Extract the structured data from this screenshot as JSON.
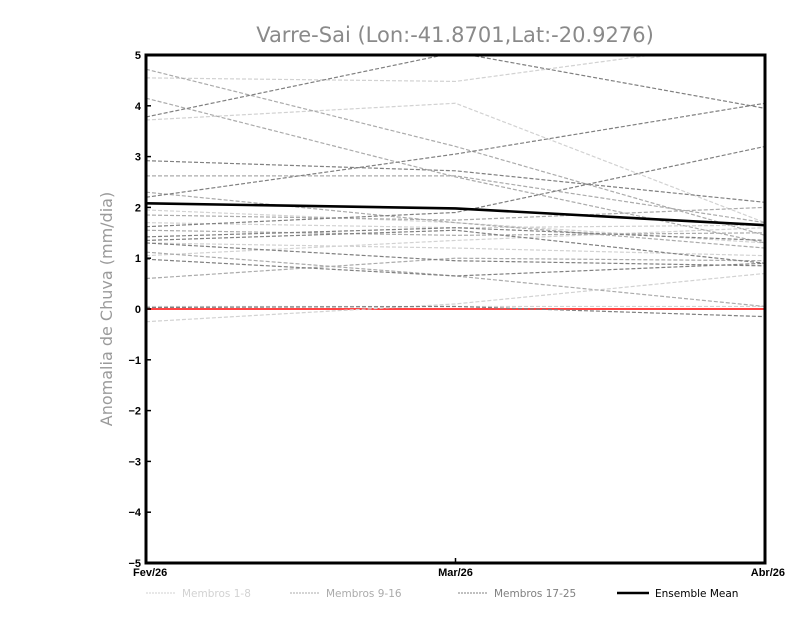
{
  "chart_data": {
    "type": "line",
    "title": "Varre-Sai (Lon:-41.8701,Lat:-20.9276)",
    "xlabel": "",
    "ylabel": "Anomalia de Chuva (mm/dia)",
    "categories": [
      "Fev/26",
      "Mar/26",
      "Abr/26"
    ],
    "ylim": [
      -5,
      5
    ],
    "yticks": [
      "5",
      "4",
      "3",
      "2",
      "1",
      "0",
      "-1",
      "-2",
      "-3",
      "-4",
      "-5"
    ],
    "zero_line_color": "#ff4444",
    "legend": {
      "placement": "bottom",
      "entries": [
        {
          "label": "Membros 1-8",
          "color": "#d2d2d2"
        },
        {
          "label": "Membros 9-16",
          "color": "#ababab"
        },
        {
          "label": "Membros 17-25",
          "color": "#808080"
        },
        {
          "label": "Ensemble Mean",
          "color": "#000000"
        }
      ]
    },
    "series": [
      {
        "name": "Membro 1",
        "group": 0,
        "values": [
          4.55,
          4.48,
          5.3
        ]
      },
      {
        "name": "Membro 2",
        "group": 0,
        "values": [
          3.72,
          4.05,
          1.7
        ]
      },
      {
        "name": "Membro 3",
        "group": 0,
        "values": [
          1.95,
          1.7,
          1.3
        ]
      },
      {
        "name": "Membro 4",
        "group": 0,
        "values": [
          1.7,
          1.6,
          1.65
        ]
      },
      {
        "name": "Membro 5",
        "group": 0,
        "values": [
          1.3,
          1.2,
          1.05
        ]
      },
      {
        "name": "Membro 6",
        "group": 0,
        "values": [
          1.05,
          1.35,
          1.6
        ]
      },
      {
        "name": "Membro 7",
        "group": 0,
        "values": [
          -0.25,
          0.1,
          0.7
        ]
      },
      {
        "name": "Membro 8",
        "group": 0,
        "values": [
          0.05,
          0.05,
          0.05
        ]
      },
      {
        "name": "Membro 9",
        "group": 1,
        "values": [
          4.72,
          3.2,
          1.45
        ]
      },
      {
        "name": "Membro 10",
        "group": 1,
        "values": [
          4.15,
          2.6,
          1.3
        ]
      },
      {
        "name": "Membro 11",
        "group": 1,
        "values": [
          2.62,
          2.62,
          1.7
        ]
      },
      {
        "name": "Membro 12",
        "group": 1,
        "values": [
          2.3,
          1.7,
          1.2
        ]
      },
      {
        "name": "Membro 13",
        "group": 1,
        "values": [
          1.85,
          1.75,
          2.0
        ]
      },
      {
        "name": "Membro 14",
        "group": 1,
        "values": [
          1.55,
          1.45,
          1.5
        ]
      },
      {
        "name": "Membro 15",
        "group": 1,
        "values": [
          1.12,
          0.65,
          0.05
        ]
      },
      {
        "name": "Membro 16",
        "group": 1,
        "values": [
          0.6,
          1.0,
          0.95
        ]
      },
      {
        "name": "Membro 17",
        "group": 2,
        "values": [
          3.78,
          5.05,
          3.95
        ]
      },
      {
        "name": "Membro 18",
        "group": 2,
        "values": [
          2.2,
          3.05,
          4.05
        ]
      },
      {
        "name": "Membro 19",
        "group": 2,
        "values": [
          2.92,
          2.72,
          2.1
        ]
      },
      {
        "name": "Membro 20",
        "group": 2,
        "values": [
          1.62,
          1.9,
          3.2
        ]
      },
      {
        "name": "Membro 21",
        "group": 2,
        "values": [
          1.42,
          1.6,
          1.35
        ]
      },
      {
        "name": "Membro 22",
        "group": 2,
        "values": [
          1.35,
          1.55,
          0.9
        ]
      },
      {
        "name": "Membro 23",
        "group": 2,
        "values": [
          1.3,
          0.95,
          0.85
        ]
      },
      {
        "name": "Membro 24",
        "group": 2,
        "values": [
          0.98,
          0.65,
          0.9
        ]
      },
      {
        "name": "Membro 25",
        "group": 2,
        "values": [
          0.03,
          0.05,
          -0.15
        ]
      },
      {
        "name": "Ensemble Mean",
        "group": 3,
        "values": [
          2.08,
          1.98,
          1.65
        ]
      }
    ]
  }
}
